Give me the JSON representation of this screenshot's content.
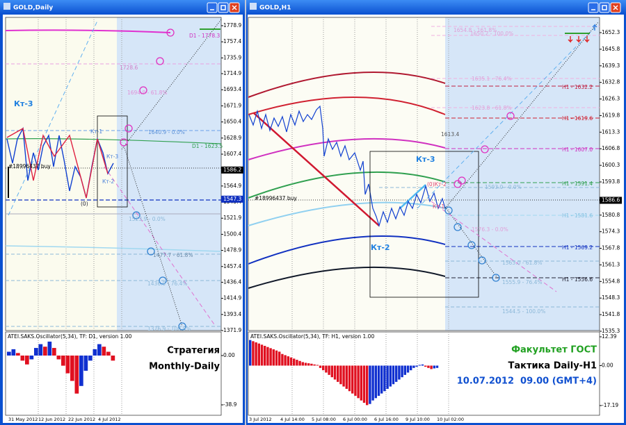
{
  "windows": [
    {
      "title": "GOLD,Daily",
      "price_axis": [
        1778.9,
        1757.4,
        1735.9,
        1714.9,
        1693.4,
        1671.9,
        1650.4,
        1628.9,
        1607.4,
        1564.9,
        1543.4,
        1521.9,
        1500.4,
        1478.9,
        1457.4,
        1436.4,
        1414.9,
        1393.4,
        1371.9
      ],
      "highlight_labels": [
        1586.2,
        1547.3
      ],
      "time_labels": [
        "31 May 2012",
        "12 Jun 2012",
        "22 Jun 2012",
        "4 Jul 2012"
      ],
      "annotations": [
        "Кт-3",
        "Кт-1",
        "Кт-3",
        "Кт-2",
        "(0)",
        "#18996437 buy",
        "1728.6",
        "1640.9 - 0.0%",
        "D1 - 1623.5",
        "D1 - 1778.3",
        "1694.9 - 61.8%",
        "1523.9 - 0.0%",
        "1477.7 - 61.8%",
        "1436.9 - 76.4%",
        "1376.9 - 100.0%"
      ],
      "oscillator": {
        "title": "ATEI.SAKS.Oscillator(5,34), TF: D1, version 1.00",
        "axis": [
          {
            "value": 0,
            "label": "0.00"
          },
          -38.9
        ],
        "values": [
          3,
          5,
          2,
          -4,
          -7,
          -3,
          6,
          9,
          7,
          11,
          6,
          -3,
          -8,
          -14,
          -20,
          -30,
          -24,
          -12,
          -4,
          5,
          9,
          7,
          3,
          -4
        ]
      },
      "captions": [
        "Стратегия",
        "Monthly-Daily"
      ]
    },
    {
      "title": "GOLD,H1",
      "price_axis": [
        1652.3,
        1645.8,
        1639.3,
        1632.8,
        1626.3,
        1619.8,
        1613.3,
        1606.8,
        1600.3,
        1593.8,
        1580.8,
        1574.3,
        1567.8,
        1561.3,
        1554.8,
        1548.3,
        1541.8,
        1535.3
      ],
      "highlight_labels": [
        1586.6
      ],
      "time_labels": [
        "3 Jul 2012",
        "4 Jul 14:00",
        "5 Jul 08:00",
        "6 Jul 00:00",
        "6 Jul 16:00",
        "9 Jul 10:00",
        "10 Jul 02:00"
      ],
      "annotations": [
        "1654.8 - 161.8%",
        "1650.2 - 100.0%",
        "1635.1 - 76.4%",
        "H1 - 1632.2",
        "1623.8 - 61.8%",
        "H1 - 1619.6",
        "1613.4",
        "H1 - 1607.0",
        "Кт-3",
        "1593.0 - 0.0%",
        "H1 - 1591.4",
        "#18996437 buy",
        "(0)Кт-2",
        "Кт-1",
        "1576.3 - 0.0%",
        "H1 - 1581.6",
        "H1 - 1569.2",
        "Кт-2",
        "1563.0 - 61.8%",
        "1555.9 - 76.4%",
        "H1 - 1556.6",
        "1544.5 - 100.0%"
      ],
      "oscillator": {
        "title": "ATEI.SAKS.Oscillator(5,34), TF: H1, version 1.00",
        "axis": [
          12.39,
          {
            "value": 0,
            "label": "0.00"
          },
          -17.19
        ],
        "values": [
          11,
          10.5,
          10,
          9.5,
          9,
          8.5,
          8,
          7.5,
          7,
          6.5,
          6,
          5,
          4.5,
          4,
          3.5,
          3,
          2.5,
          2,
          1.5,
          1.2,
          1,
          0.8,
          0.5,
          0.3,
          -1,
          -2,
          -3,
          -4,
          -5,
          -6,
          -7,
          -8,
          -9,
          -10,
          -11,
          -12,
          -13,
          -14,
          -15,
          -16,
          -17,
          -16.5,
          -15,
          -14,
          -13,
          -12,
          -11,
          -10,
          -9,
          -8,
          -7,
          -6,
          -5,
          -4,
          -3,
          -2,
          -1,
          -0.5,
          0.3,
          0.5,
          -0.5,
          -1,
          -1.5,
          -1.2,
          -1
        ]
      },
      "captions": [
        "Факультет ГОСТ",
        "Тактика Daily-H1",
        "10.07.2012  09.00 (GMT+4)"
      ]
    }
  ]
}
